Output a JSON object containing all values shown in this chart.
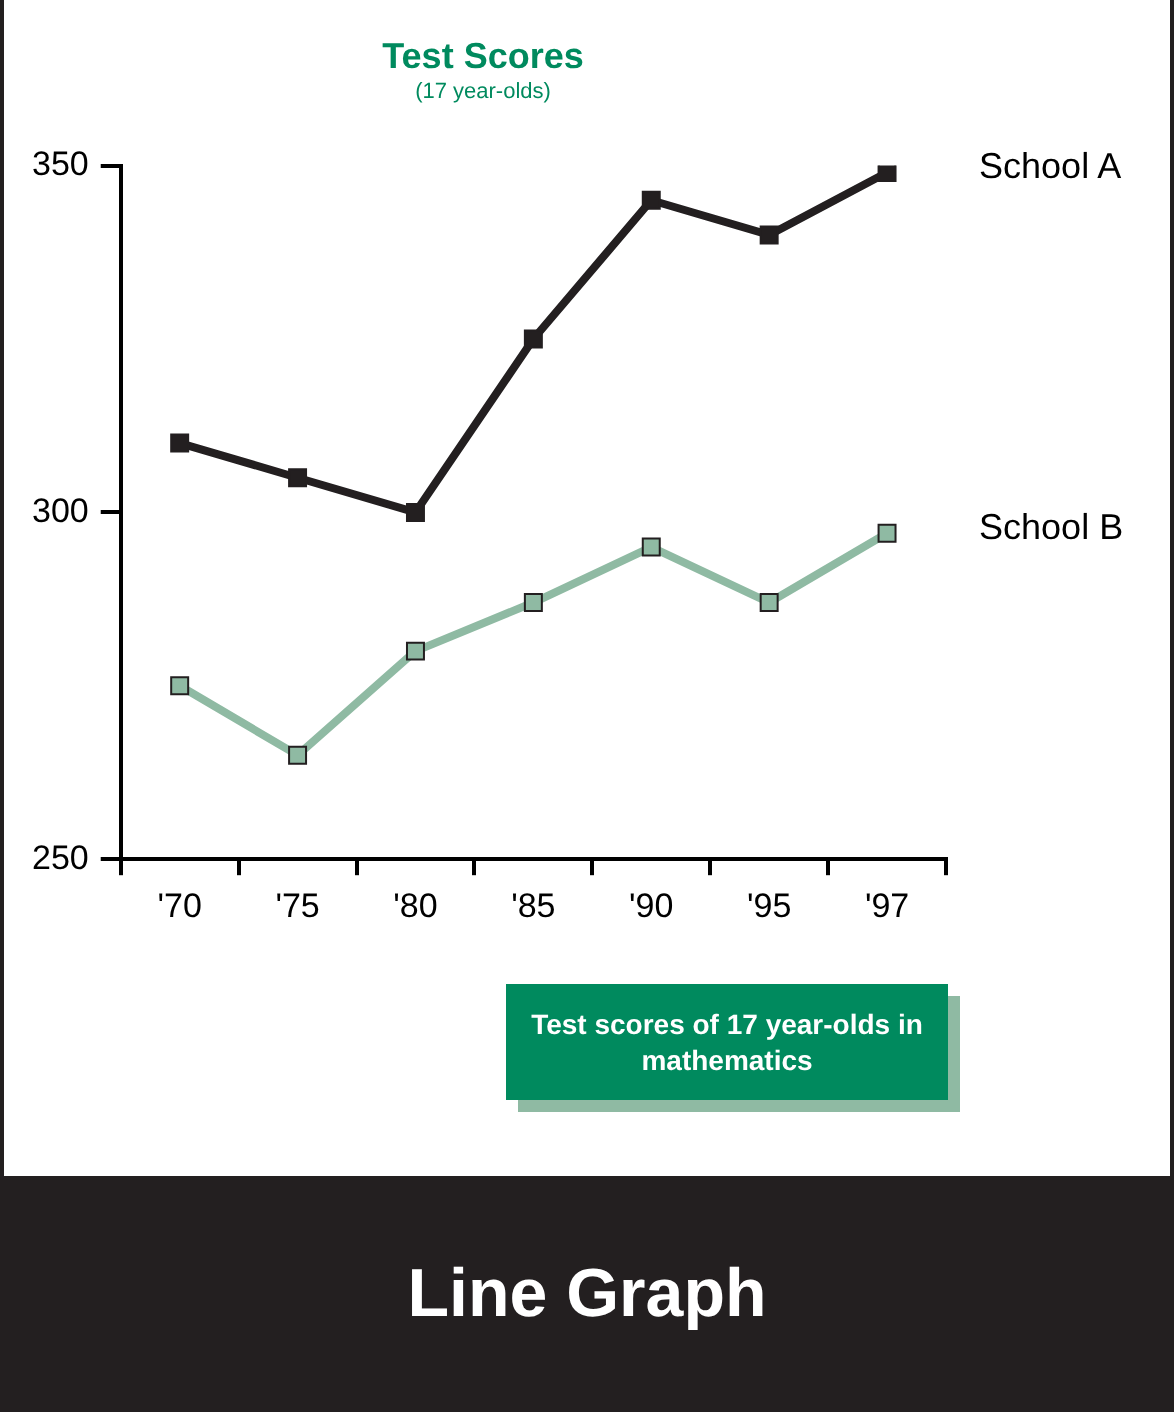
{
  "chart_data": {
    "type": "line",
    "title": "Test Scores",
    "subtitle": "(17 year-olds)",
    "categories": [
      "'70",
      "'75",
      "'80",
      "'85",
      "'90",
      "'95",
      "'97"
    ],
    "series": [
      {
        "name": "School A",
        "color": "#231f20",
        "values": [
          310,
          305,
          300,
          325,
          345,
          340,
          349
        ]
      },
      {
        "name": "School B",
        "color": "#8fbaa3",
        "values": [
          275,
          265,
          280,
          287,
          295,
          287,
          297
        ]
      }
    ],
    "ylim": [
      250,
      350
    ],
    "yticks": [
      250,
      300,
      350
    ],
    "grid": false,
    "legend": false,
    "marker": "square",
    "line_style": "solid",
    "annotations": [
      "Test scores of 17 year-olds in mathematics",
      "Line Graph"
    ]
  }
}
